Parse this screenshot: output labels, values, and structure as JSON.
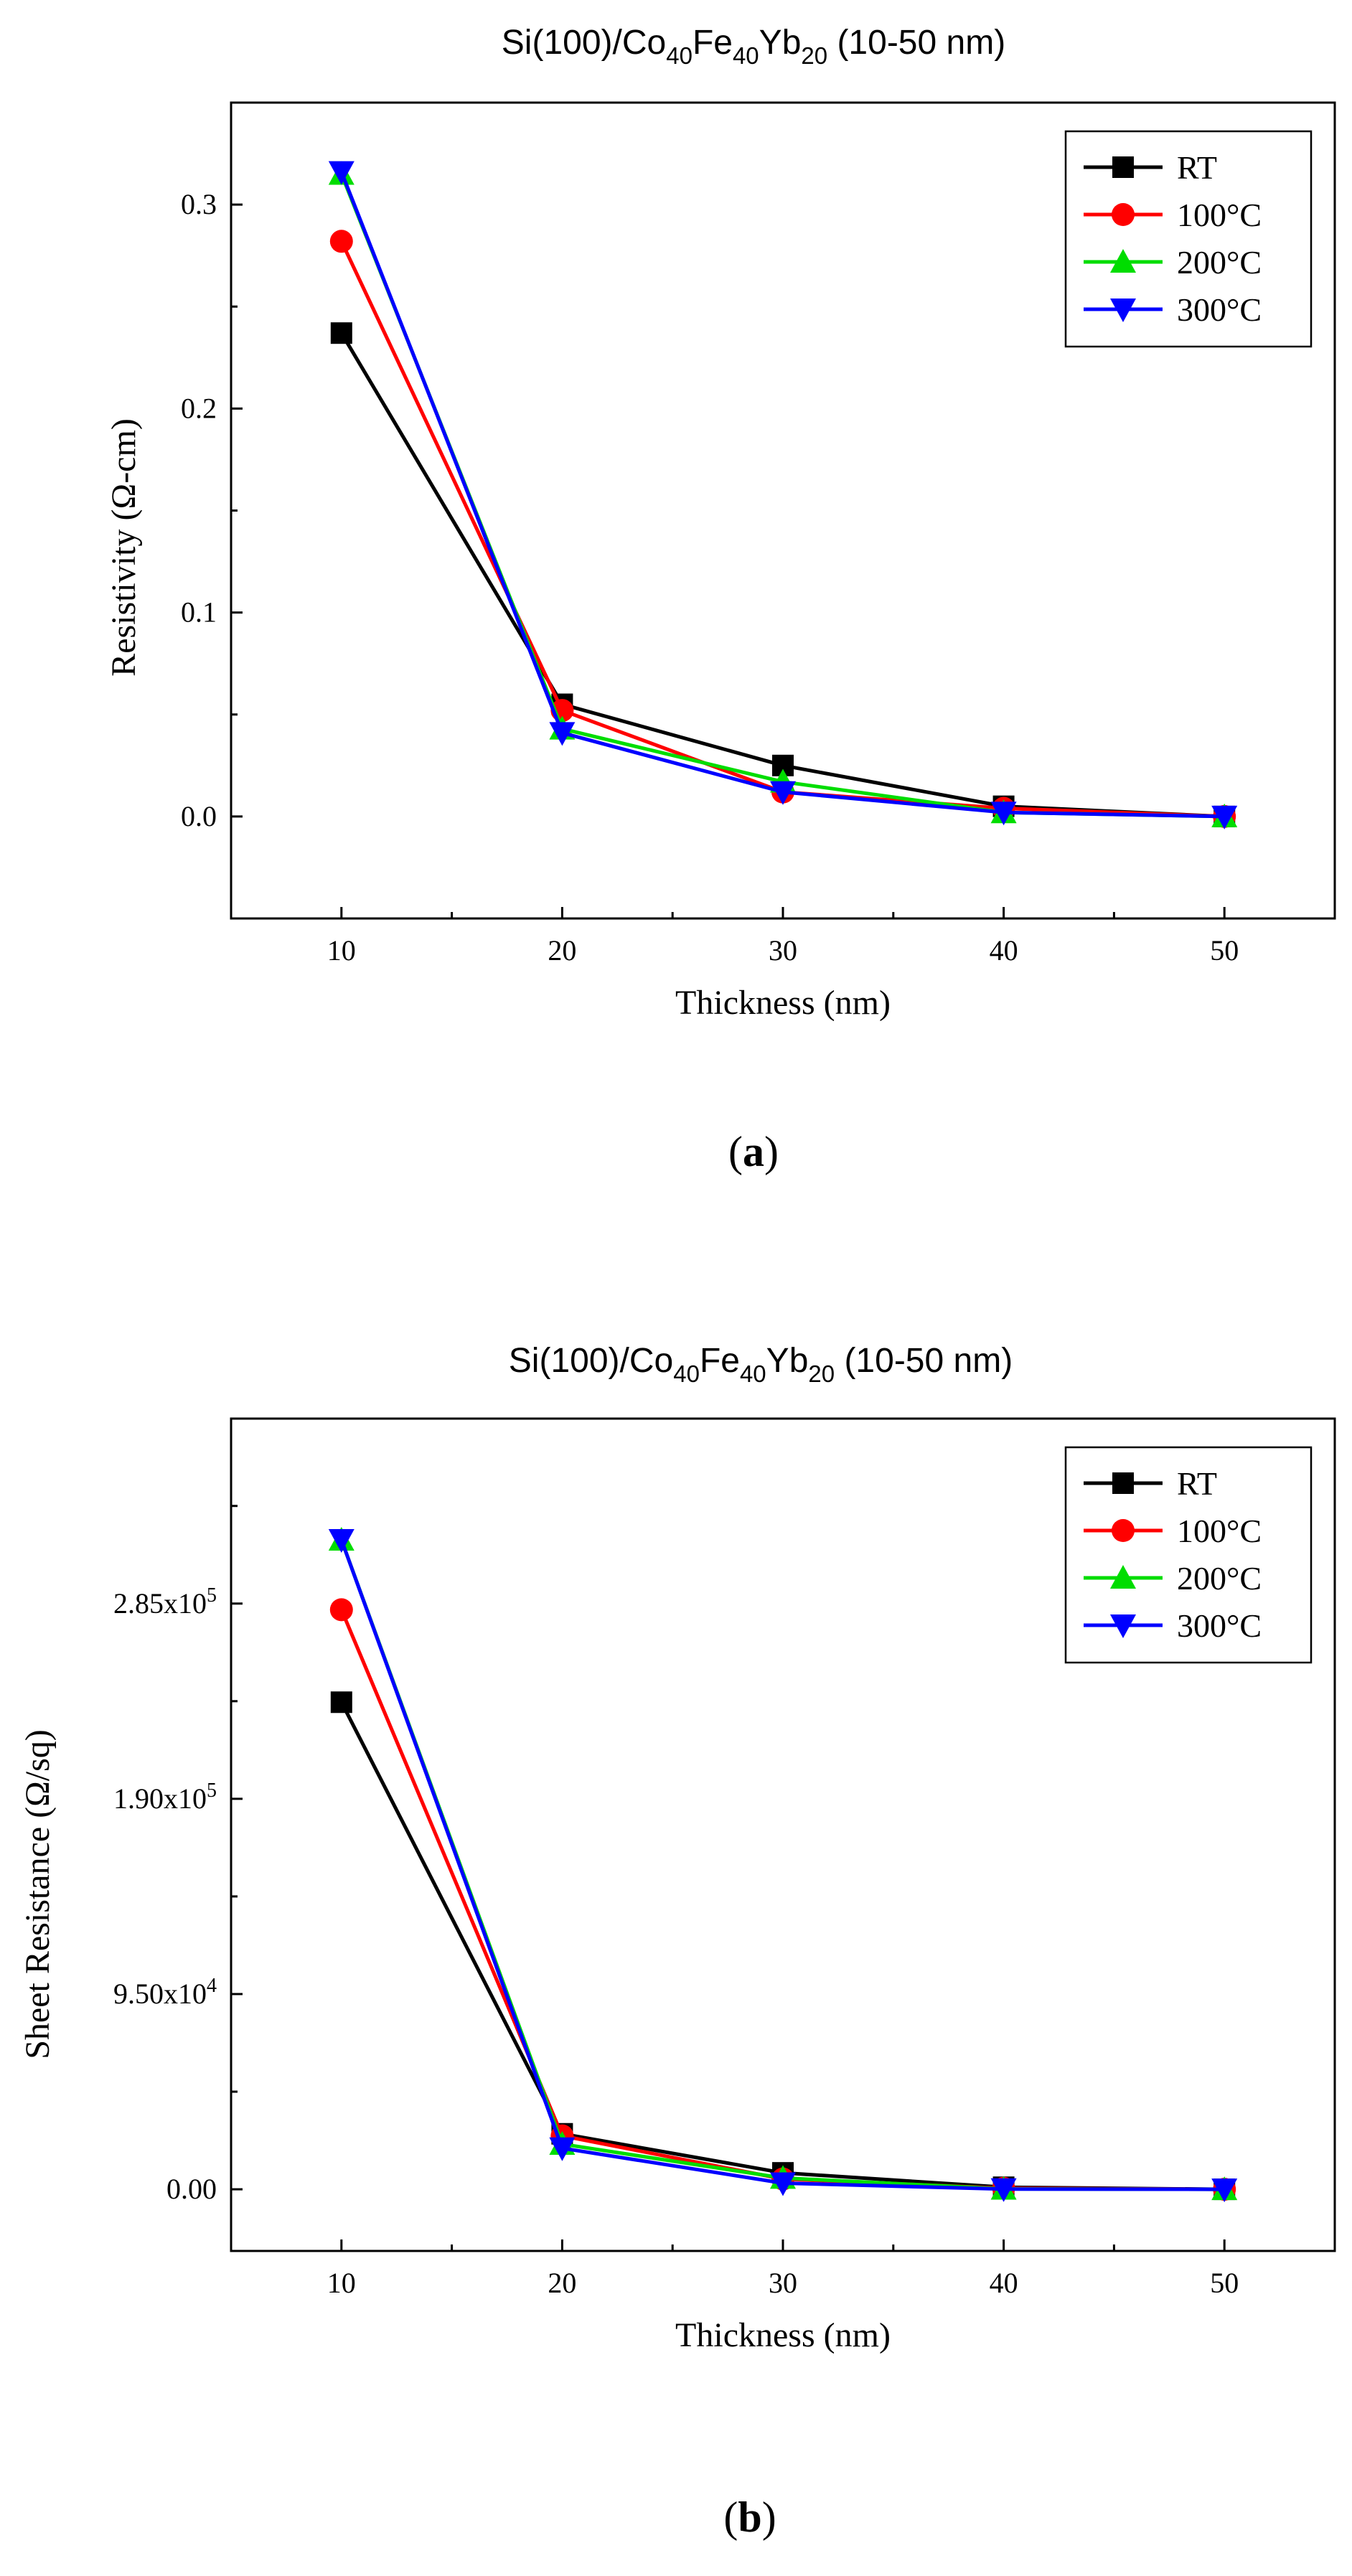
{
  "chart_data": [
    {
      "type": "line",
      "title": {
        "prefix": "Si(100)/Co",
        "s1": "40",
        "mid1": "Fe",
        "s2": "40",
        "mid2": "Yb",
        "s3": "20",
        "suffix": " (10-50 nm)"
      },
      "xlabel": "Thickness (nm)",
      "ylabel": "Resistivity (Ω-cm)",
      "x": [
        10,
        20,
        30,
        40,
        50
      ],
      "xlim": [
        5,
        55
      ],
      "ylim": [
        -0.05,
        0.35
      ],
      "xticks": [
        {
          "v": 10,
          "label": "10"
        },
        {
          "v": 20,
          "label": "20"
        },
        {
          "v": 30,
          "label": "30"
        },
        {
          "v": 40,
          "label": "40"
        },
        {
          "v": 50,
          "label": "50"
        }
      ],
      "yticks": [
        {
          "v": 0.0,
          "label": "0.0"
        },
        {
          "v": 0.1,
          "label": "0.1"
        },
        {
          "v": 0.2,
          "label": "0.2"
        },
        {
          "v": 0.3,
          "label": "0.3"
        }
      ],
      "legend_position": "top-right",
      "series": [
        {
          "name": "RT",
          "color": "#000000",
          "marker": "square",
          "values": [
            0.237,
            0.055,
            0.025,
            0.005,
            0.0
          ]
        },
        {
          "name": "100°C",
          "color": "#ff0000",
          "marker": "circle",
          "values": [
            0.282,
            0.052,
            0.012,
            0.004,
            0.0
          ]
        },
        {
          "name": "200°C",
          "color": "#00dd00",
          "marker": "triangle-up",
          "values": [
            0.315,
            0.043,
            0.017,
            0.002,
            0.0
          ]
        },
        {
          "name": "300°C",
          "color": "#0000ff",
          "marker": "triangle-down",
          "values": [
            0.316,
            0.041,
            0.012,
            0.002,
            0.0
          ]
        }
      ],
      "caption": "a"
    },
    {
      "type": "line",
      "title": {
        "prefix": "Si(100)/Co",
        "s1": "40",
        "mid1": "Fe",
        "s2": "40",
        "mid2": "Yb",
        "s3": "20",
        "suffix": " (10-50 nm)"
      },
      "xlabel": "Thickness (nm)",
      "ylabel": "Sheet Resistance (Ω/sq)",
      "x": [
        10,
        20,
        30,
        40,
        50
      ],
      "xlim": [
        5,
        55
      ],
      "ylim": [
        -30000,
        375000
      ],
      "xticks": [
        {
          "v": 10,
          "label": "10"
        },
        {
          "v": 20,
          "label": "20"
        },
        {
          "v": 30,
          "label": "30"
        },
        {
          "v": 40,
          "label": "40"
        },
        {
          "v": 50,
          "label": "50"
        }
      ],
      "yticks": [
        {
          "v": 0,
          "label": "0.00"
        },
        {
          "v": 95000,
          "mant": "9.50x10",
          "exp": "4"
        },
        {
          "v": 190000,
          "mant": "1.90x10",
          "exp": "5"
        },
        {
          "v": 285000,
          "mant": "2.85x10",
          "exp": "5"
        }
      ],
      "legend_position": "top-right",
      "series": [
        {
          "name": "RT",
          "color": "#000000",
          "marker": "square",
          "values": [
            237000,
            27000,
            8000,
            1000,
            0
          ]
        },
        {
          "name": "100°C",
          "color": "#ff0000",
          "marker": "circle",
          "values": [
            282000,
            26000,
            5000,
            500,
            0
          ]
        },
        {
          "name": "200°C",
          "color": "#00dd00",
          "marker": "triangle-up",
          "values": [
            316000,
            22000,
            5500,
            200,
            0
          ]
        },
        {
          "name": "300°C",
          "color": "#0000ff",
          "marker": "triangle-down",
          "values": [
            316000,
            20000,
            3000,
            100,
            0
          ]
        }
      ],
      "caption": "b"
    }
  ]
}
